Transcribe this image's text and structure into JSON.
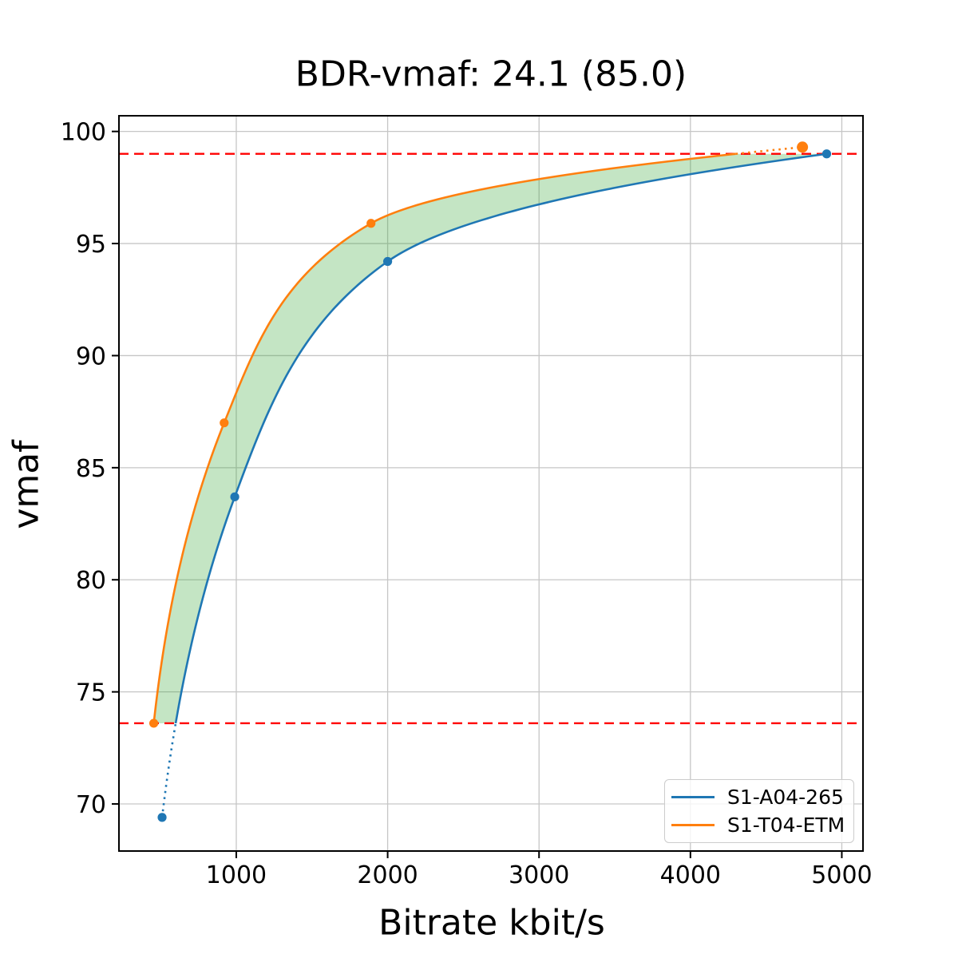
{
  "chart_data": {
    "type": "line",
    "title": "BDR-vmaf: 24.1 (85.0)",
    "xlabel": "Bitrate kbit/s",
    "ylabel": "vmaf",
    "xlim": [
      225,
      5140
    ],
    "ylim": [
      67.9,
      100.7
    ],
    "xticks": [
      1000,
      2000,
      3000,
      4000,
      5000
    ],
    "yticks": [
      70,
      75,
      80,
      85,
      90,
      95,
      100
    ],
    "grid": true,
    "grid_color": "#c6c6c6",
    "legend_position": "lower right",
    "series": [
      {
        "name": "S1-A04-265",
        "color": "#1f77b4",
        "points": [
          [
            510,
            69.4
          ],
          [
            990,
            83.7
          ],
          [
            2000,
            94.2
          ],
          [
            4900,
            99.0
          ]
        ]
      },
      {
        "name": "S1-T04-ETM",
        "color": "#ff7f0e",
        "points": [
          [
            455,
            73.6
          ],
          [
            920,
            87.0
          ],
          [
            1890,
            95.9
          ],
          [
            4740,
            99.3
          ]
        ]
      }
    ],
    "integration_bounds": {
      "lower_vmaf": 73.6,
      "upper_vmaf": 99.0,
      "line_color": "#ff0000",
      "line_style": "dashed"
    },
    "fill_between": {
      "color": "#2ca02c",
      "alpha": 0.28
    },
    "interpolation": "pchip of log10(bitrate) vs vmaf; dotted outside integration bounds"
  }
}
